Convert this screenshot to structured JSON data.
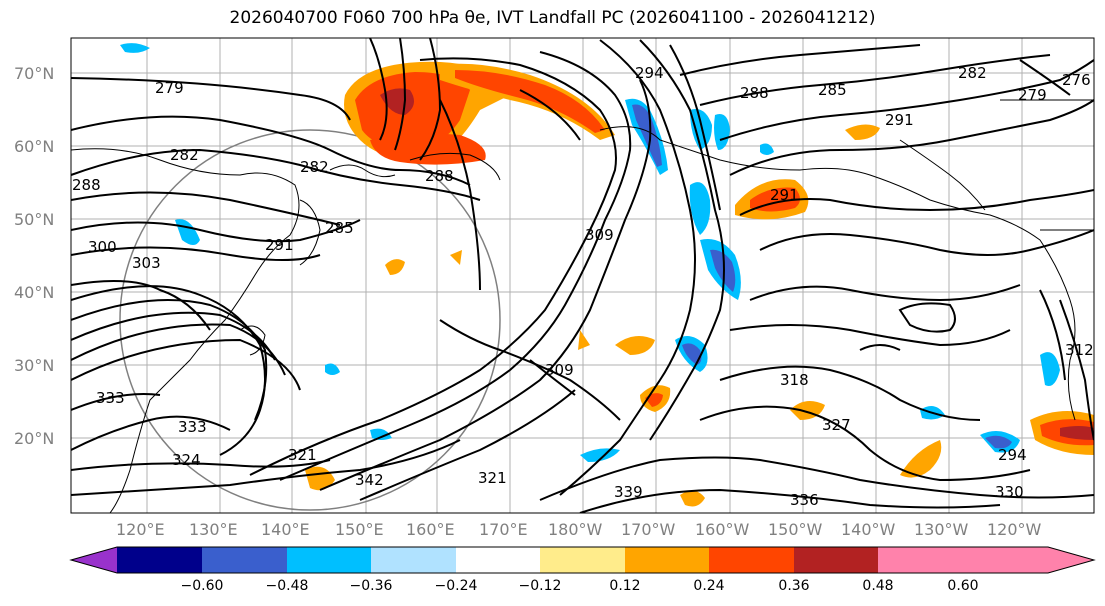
{
  "title": "2026040700 F060 700 hPa θe, IVT Landfall PC (2026041100 - 2026041212)",
  "lat_labels": [
    "70°N",
    "60°N",
    "50°N",
    "40°N",
    "30°N",
    "20°N"
  ],
  "lon_labels": [
    "120°E",
    "130°E",
    "140°E",
    "150°E",
    "160°E",
    "170°E",
    "180°W",
    "170°W",
    "160°W",
    "150°W",
    "140°W",
    "130°W",
    "120°W"
  ],
  "contour_labels": [
    "279",
    "282",
    "282",
    "288",
    "285",
    "288",
    "291",
    "294",
    "300",
    "303",
    "309",
    "309",
    "312",
    "318",
    "321",
    "321",
    "324",
    "327",
    "330",
    "333",
    "333",
    "336",
    "339",
    "342",
    "291",
    "291",
    "294",
    "288",
    "285",
    "282",
    "279",
    "276"
  ],
  "colorbar": {
    "colors": [
      "#9932CC",
      "#00008B",
      "#3A5FCD",
      "#00BFFF",
      "#B0E2FF",
      "#FFFFFF",
      "#FFEC8B",
      "#FFA500",
      "#FF4500",
      "#B22222",
      "#FF82AB"
    ],
    "tick_labels": [
      "−0.60",
      "−0.48",
      "−0.36",
      "−0.24",
      "−0.12",
      "0.12",
      "0.24",
      "0.36",
      "0.48",
      "0.60"
    ]
  }
}
